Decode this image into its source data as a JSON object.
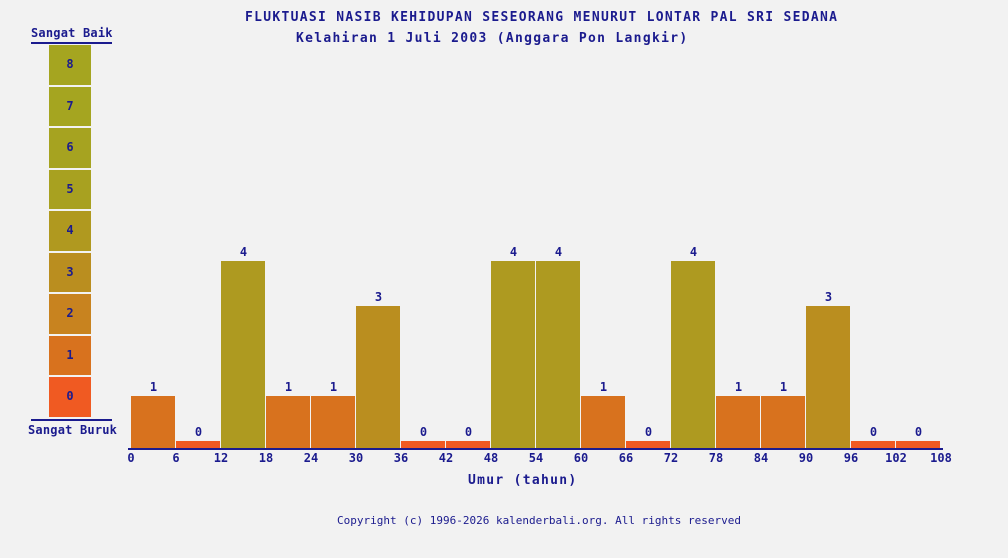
{
  "colors": {
    "background": "#f2f2f2",
    "text": "#1b1b8e",
    "axis": "#1b1b8e"
  },
  "chart_data": {
    "type": "bar",
    "title": "FLUKTUASI NASIB KEHIDUPAN SESEORANG MENURUT LONTAR PAL SRI SEDANA",
    "subtitle": "Kelahiran 1 Juli 2003 (Anggara Pon Langkir)",
    "xlabel": "Umur (tahun)",
    "x_ticks": [
      0,
      6,
      12,
      18,
      24,
      30,
      36,
      42,
      48,
      54,
      60,
      66,
      72,
      78,
      84,
      90,
      96,
      102,
      108
    ],
    "categories": [
      "0-6",
      "6-12",
      "12-18",
      "18-24",
      "24-30",
      "30-36",
      "36-42",
      "42-48",
      "48-54",
      "54-60",
      "60-66",
      "66-72",
      "72-78",
      "78-84",
      "84-90",
      "90-96",
      "96-102",
      "102-108"
    ],
    "values": [
      1,
      0,
      4,
      1,
      1,
      3,
      0,
      0,
      4,
      4,
      1,
      0,
      4,
      1,
      1,
      3,
      0,
      0
    ],
    "ylim": [
      0,
      8
    ],
    "bar_interval_years": 6,
    "grid": false,
    "legend_position": "left",
    "value_colors": {
      "0": "#f05a22",
      "1": "#d8721e",
      "2": "#c8831f",
      "3": "#ba8e1f",
      "4": "#ae9a20"
    }
  },
  "scale": {
    "top_label": "Sangat Baik",
    "bottom_label": "Sangat Buruk",
    "cells": [
      {
        "value": 8,
        "color": "#a5a520"
      },
      {
        "value": 7,
        "color": "#a5a520"
      },
      {
        "value": 6,
        "color": "#a6a320"
      },
      {
        "value": 5,
        "color": "#a8a120"
      },
      {
        "value": 4,
        "color": "#b0991f"
      },
      {
        "value": 3,
        "color": "#ba8e1f"
      },
      {
        "value": 2,
        "color": "#c8831f"
      },
      {
        "value": 1,
        "color": "#d8721e"
      },
      {
        "value": 0,
        "color": "#f05a22"
      }
    ]
  },
  "footer": {
    "copyright": "Copyright (c) 1996-2026 kalenderbali.org. All rights reserved"
  }
}
